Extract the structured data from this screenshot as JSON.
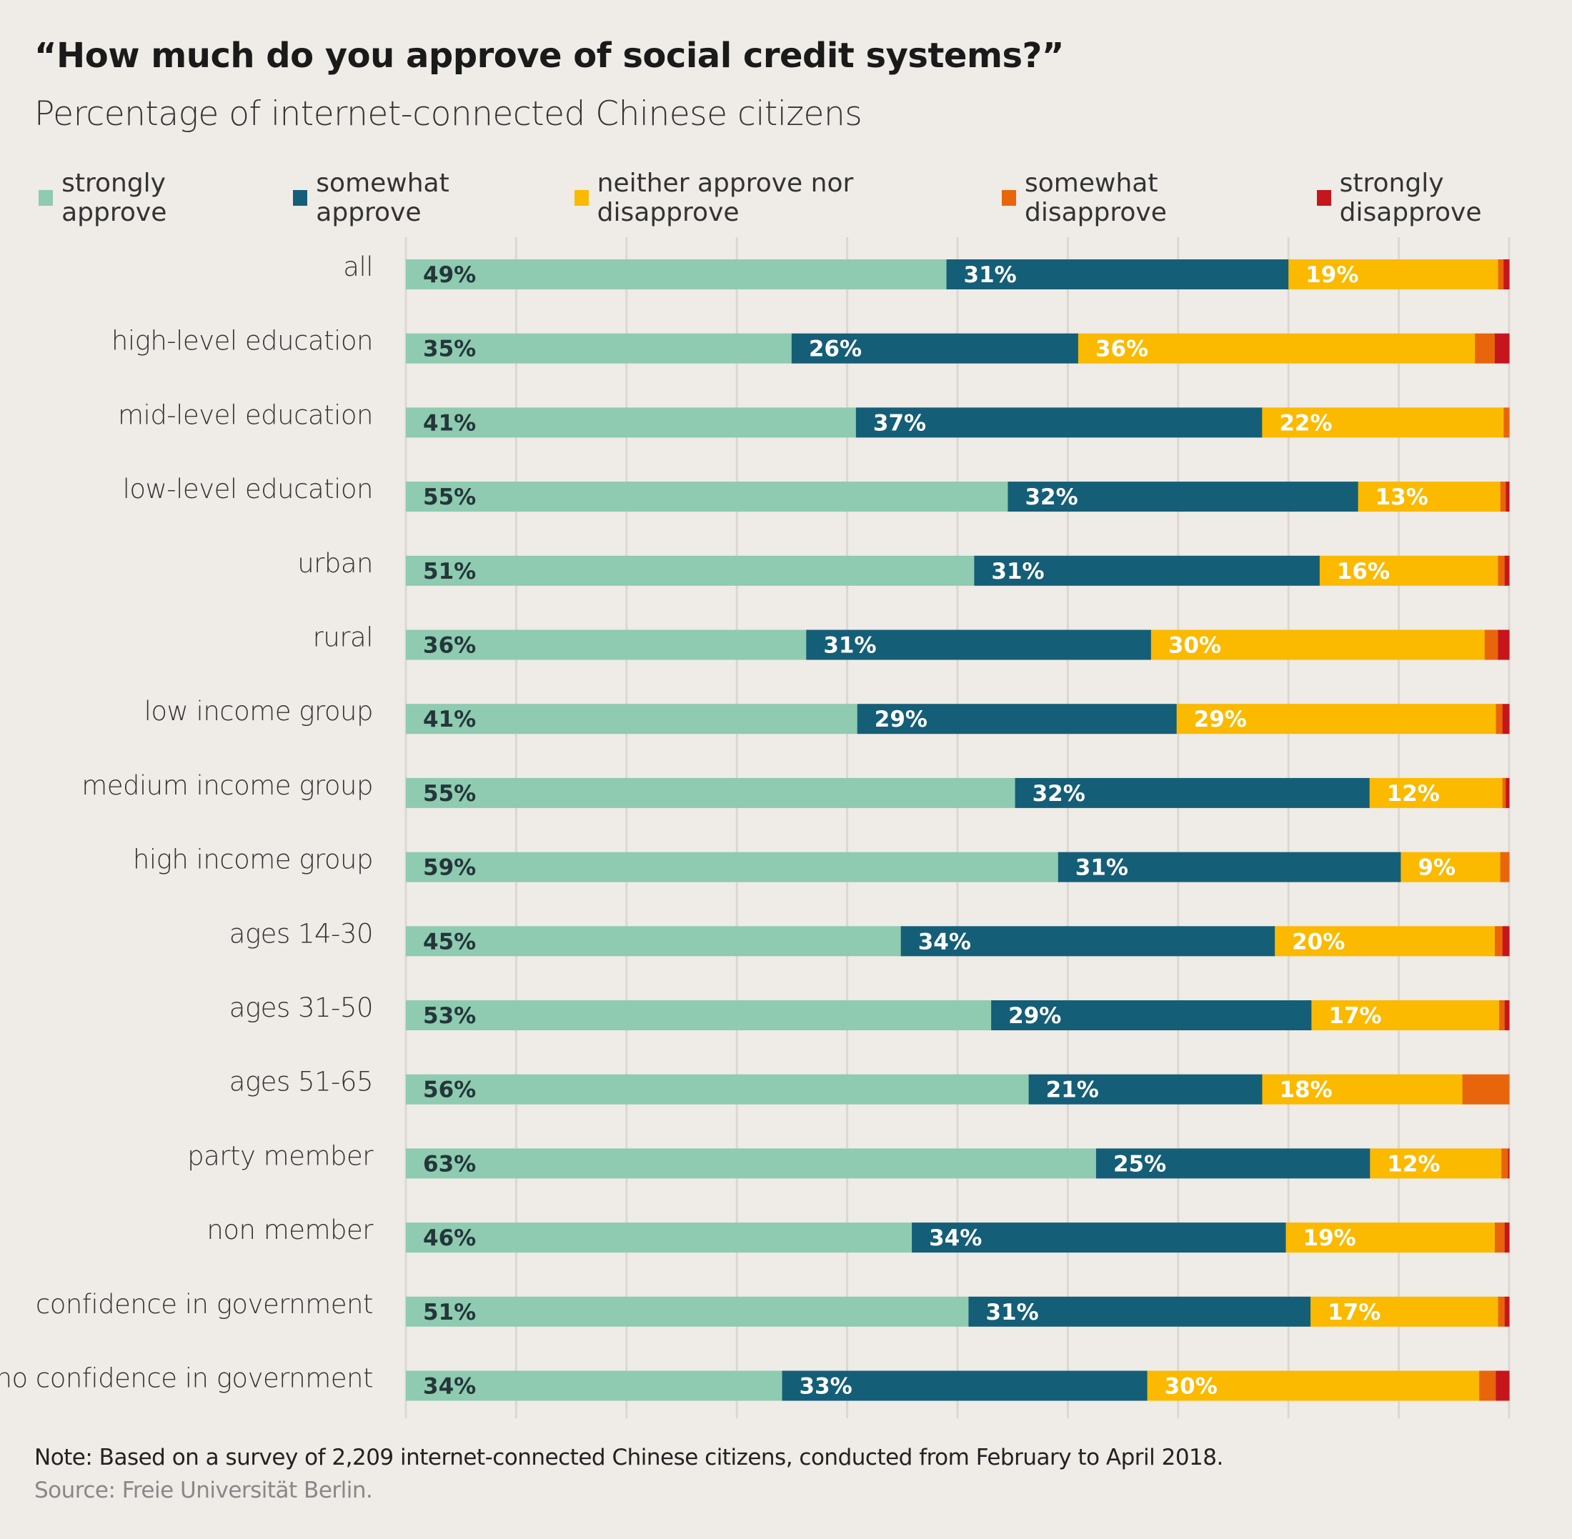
{
  "title": "“How much do you approve of social credit systems?”",
  "subtitle": "Percentage of internet-connected Chinese citizens",
  "note": "Note: Based on a survey of 2,209 internet-connected Chinese citizens, conducted from February to April 2018.",
  "source": "Source: Freie Universität Berlin.",
  "chart_data": {
    "type": "bar",
    "orientation": "horizontal",
    "stacked": true,
    "xlim": [
      0,
      100
    ],
    "grid": true,
    "legend_position": "top",
    "categories": [
      "all",
      "high-level education",
      "mid-level education",
      "low-level education",
      "urban",
      "rural",
      "low income group",
      "medium income group",
      "high income group",
      "ages 14-30",
      "ages 31-50",
      "ages 51-65",
      "party member",
      "non member",
      "confidence in government",
      "no confidence in government"
    ],
    "series": [
      {
        "name": "strongly approve",
        "color": "#8ecbb0",
        "label_color": "#24363a",
        "labeled": true,
        "values": [
          49,
          35,
          41,
          55,
          51,
          36,
          41,
          55,
          59,
          45,
          53,
          56,
          63,
          46,
          51,
          34
        ]
      },
      {
        "name": "somewhat approve",
        "color": "#155e78",
        "label_color": "#ffffff",
        "labeled": true,
        "values": [
          31,
          26,
          37,
          32,
          31,
          31,
          29,
          32,
          31,
          34,
          29,
          21,
          25,
          34,
          31,
          33
        ]
      },
      {
        "name": "neither approve nor disapprove",
        "color": "#fbb900",
        "label_color": "#ffffff",
        "labeled": true,
        "values": [
          19,
          36,
          22,
          13,
          16,
          30,
          29,
          12,
          9,
          20,
          17,
          18,
          12,
          19,
          17,
          30
        ]
      },
      {
        "name": "somewhat disapprove",
        "color": "#e8650b",
        "label_color": "#ffffff",
        "labeled": false,
        "values": [
          0.5,
          1.8,
          0.5,
          0.5,
          0.6,
          1.2,
          0.6,
          0.3,
          0.8,
          0.7,
          0.5,
          4.2,
          0.6,
          0.9,
          0.6,
          1.5
        ]
      },
      {
        "name": "strongly disapprove",
        "color": "#c4161c",
        "label_color": "#ffffff",
        "labeled": false,
        "values": [
          0.5,
          1.3,
          0,
          0.3,
          0.4,
          1.0,
          0.6,
          0.3,
          0,
          0.6,
          0.4,
          0,
          0.1,
          0.4,
          0.4,
          1.2
        ]
      }
    ]
  }
}
